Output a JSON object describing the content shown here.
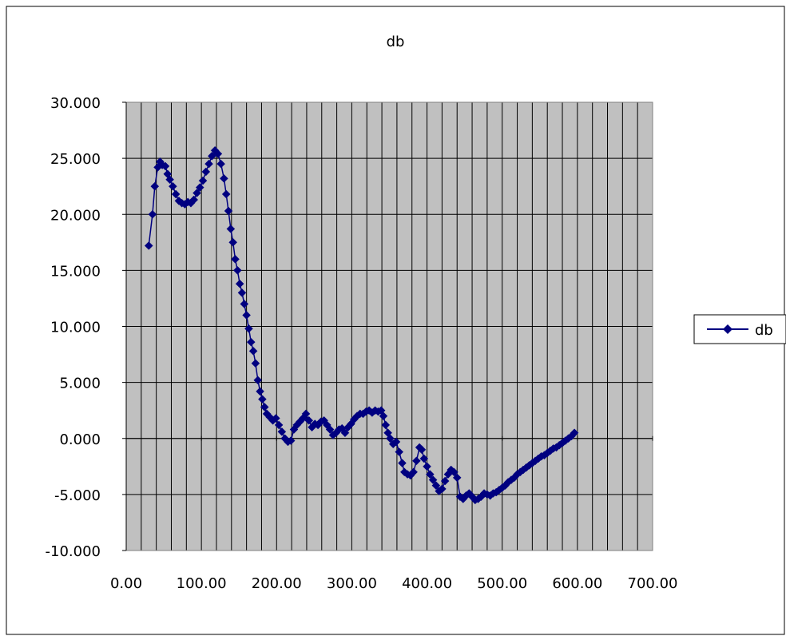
{
  "chart_data": {
    "type": "line",
    "title": "db",
    "xlabel": "",
    "ylabel": "",
    "xlim": [
      0,
      700
    ],
    "ylim": [
      -10,
      30
    ],
    "x_ticks": [
      0,
      100,
      200,
      300,
      400,
      500,
      600,
      700
    ],
    "x_tick_labels": [
      "0.00",
      "100.00",
      "200.00",
      "300.00",
      "400.00",
      "500.00",
      "600.00",
      "700.00"
    ],
    "y_ticks": [
      -10,
      -5,
      0,
      5,
      10,
      15,
      20,
      25,
      30
    ],
    "y_tick_labels": [
      "-10.000",
      "-5.000",
      "0.000",
      "5.000",
      "10.000",
      "15.000",
      "20.000",
      "25.000",
      "30.000"
    ],
    "x_grid_step": 20,
    "grid": true,
    "legend": "right",
    "plot_background": "#C0C0C0",
    "grid_color": "#000000",
    "series": [
      {
        "name": "db",
        "color": "#000080",
        "marker": "diamond",
        "points": [
          [
            30,
            17.2
          ],
          [
            35,
            20.0
          ],
          [
            38,
            22.5
          ],
          [
            42,
            24.2
          ],
          [
            45,
            24.7
          ],
          [
            48,
            24.4
          ],
          [
            52,
            24.3
          ],
          [
            55,
            23.6
          ],
          [
            58,
            23.1
          ],
          [
            62,
            22.5
          ],
          [
            66,
            21.8
          ],
          [
            70,
            21.2
          ],
          [
            74,
            21.0
          ],
          [
            78,
            20.9
          ],
          [
            82,
            21.1
          ],
          [
            86,
            21.0
          ],
          [
            90,
            21.3
          ],
          [
            94,
            21.9
          ],
          [
            98,
            22.4
          ],
          [
            102,
            23.0
          ],
          [
            106,
            23.8
          ],
          [
            110,
            24.5
          ],
          [
            114,
            25.2
          ],
          [
            118,
            25.7
          ],
          [
            122,
            25.4
          ],
          [
            126,
            24.5
          ],
          [
            130,
            23.2
          ],
          [
            133,
            21.8
          ],
          [
            136,
            20.3
          ],
          [
            139,
            18.7
          ],
          [
            142,
            17.5
          ],
          [
            145,
            16.0
          ],
          [
            148,
            15.0
          ],
          [
            151,
            13.8
          ],
          [
            154,
            13.0
          ],
          [
            157,
            12.0
          ],
          [
            160,
            11.0
          ],
          [
            163,
            9.8
          ],
          [
            166,
            8.6
          ],
          [
            169,
            7.8
          ],
          [
            172,
            6.7
          ],
          [
            175,
            5.2
          ],
          [
            178,
            4.2
          ],
          [
            181,
            3.5
          ],
          [
            184,
            2.8
          ],
          [
            187,
            2.2
          ],
          [
            191,
            1.9
          ],
          [
            195,
            1.6
          ],
          [
            199,
            1.8
          ],
          [
            203,
            1.2
          ],
          [
            207,
            0.6
          ],
          [
            211,
            0.0
          ],
          [
            215,
            -0.3
          ],
          [
            219,
            -0.2
          ],
          [
            223,
            0.8
          ],
          [
            227,
            1.2
          ],
          [
            231,
            1.5
          ],
          [
            235,
            1.8
          ],
          [
            239,
            2.2
          ],
          [
            243,
            1.6
          ],
          [
            247,
            1.0
          ],
          [
            251,
            1.3
          ],
          [
            255,
            1.2
          ],
          [
            259,
            1.5
          ],
          [
            263,
            1.6
          ],
          [
            267,
            1.2
          ],
          [
            271,
            0.8
          ],
          [
            275,
            0.3
          ],
          [
            279,
            0.5
          ],
          [
            283,
            0.8
          ],
          [
            287,
            0.9
          ],
          [
            291,
            0.5
          ],
          [
            295,
            1.0
          ],
          [
            299,
            1.3
          ],
          [
            303,
            1.7
          ],
          [
            307,
            2.0
          ],
          [
            311,
            2.2
          ],
          [
            315,
            2.2
          ],
          [
            319,
            2.4
          ],
          [
            323,
            2.5
          ],
          [
            327,
            2.3
          ],
          [
            331,
            2.5
          ],
          [
            335,
            2.4
          ],
          [
            339,
            2.5
          ],
          [
            342,
            2.0
          ],
          [
            345,
            1.2
          ],
          [
            348,
            0.5
          ],
          [
            351,
            0.0
          ],
          [
            355,
            -0.5
          ],
          [
            359,
            -0.3
          ],
          [
            363,
            -1.2
          ],
          [
            367,
            -2.2
          ],
          [
            370,
            -3.0
          ],
          [
            374,
            -3.2
          ],
          [
            378,
            -3.3
          ],
          [
            382,
            -3.0
          ],
          [
            386,
            -2.0
          ],
          [
            390,
            -0.8
          ],
          [
            393,
            -1.0
          ],
          [
            396,
            -1.8
          ],
          [
            400,
            -2.5
          ],
          [
            404,
            -3.2
          ],
          [
            408,
            -3.7
          ],
          [
            412,
            -4.2
          ],
          [
            416,
            -4.7
          ],
          [
            420,
            -4.5
          ],
          [
            424,
            -3.8
          ],
          [
            428,
            -3.2
          ],
          [
            432,
            -2.8
          ],
          [
            436,
            -3.0
          ],
          [
            440,
            -3.5
          ],
          [
            444,
            -5.2
          ],
          [
            448,
            -5.4
          ],
          [
            452,
            -5.1
          ],
          [
            456,
            -4.9
          ],
          [
            460,
            -5.2
          ],
          [
            464,
            -5.5
          ],
          [
            468,
            -5.4
          ],
          [
            472,
            -5.2
          ],
          [
            476,
            -4.9
          ],
          [
            480,
            -5.0
          ],
          [
            484,
            -5.1
          ],
          [
            488,
            -4.9
          ],
          [
            492,
            -4.8
          ],
          [
            496,
            -4.6
          ],
          [
            500,
            -4.4
          ],
          [
            504,
            -4.2
          ],
          [
            508,
            -3.9
          ],
          [
            512,
            -3.7
          ],
          [
            516,
            -3.5
          ],
          [
            520,
            -3.2
          ],
          [
            524,
            -3.0
          ],
          [
            528,
            -2.8
          ],
          [
            532,
            -2.6
          ],
          [
            536,
            -2.4
          ],
          [
            540,
            -2.2
          ],
          [
            544,
            -2.0
          ],
          [
            548,
            -1.8
          ],
          [
            552,
            -1.6
          ],
          [
            556,
            -1.5
          ],
          [
            560,
            -1.3
          ],
          [
            564,
            -1.1
          ],
          [
            568,
            -0.9
          ],
          [
            572,
            -0.8
          ],
          [
            576,
            -0.6
          ],
          [
            580,
            -0.4
          ],
          [
            584,
            -0.2
          ],
          [
            588,
            0.0
          ],
          [
            592,
            0.2
          ],
          [
            596,
            0.5
          ]
        ]
      }
    ]
  }
}
